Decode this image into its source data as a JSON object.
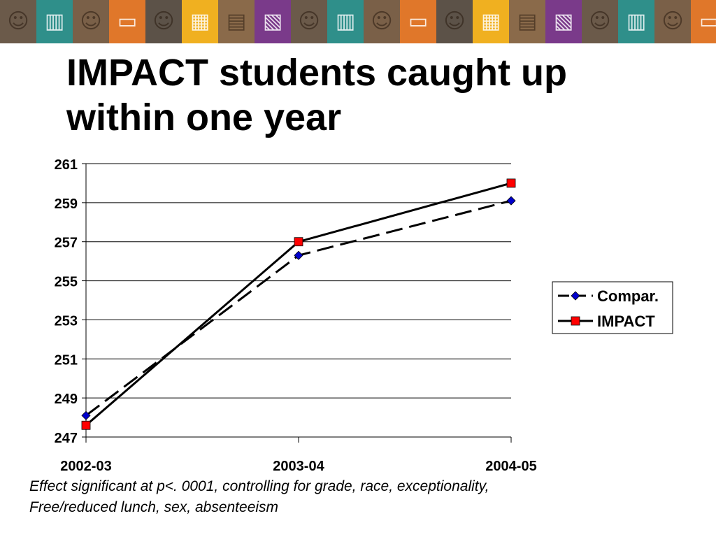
{
  "banner": {
    "tiles": [
      {
        "icon": "student-photo-icon",
        "color": "#6b5a4a",
        "glyph": "☺"
      },
      {
        "icon": "books-icon",
        "color": "#2f8f8a",
        "glyph": "▥"
      },
      {
        "icon": "student-reading-photo-icon",
        "color": "#7a6048",
        "glyph": "☺"
      },
      {
        "icon": "laptop-icon",
        "color": "#e0772a",
        "glyph": "▭"
      },
      {
        "icon": "student-computer-photo-icon",
        "color": "#5c5248",
        "glyph": "☺"
      },
      {
        "icon": "library-icon",
        "color": "#f0b020",
        "glyph": "▦"
      },
      {
        "icon": "library-shelves-photo-icon",
        "color": "#8a6a4a",
        "glyph": "▤"
      },
      {
        "icon": "textbooks-icon",
        "color": "#7a3a8a",
        "glyph": "▧"
      },
      {
        "icon": "student-photo-icon",
        "color": "#6b5a4a",
        "glyph": "☺"
      },
      {
        "icon": "books-icon",
        "color": "#2f8f8a",
        "glyph": "▥"
      },
      {
        "icon": "student-reading-photo-icon",
        "color": "#7a6048",
        "glyph": "☺"
      },
      {
        "icon": "laptop-icon",
        "color": "#e0772a",
        "glyph": "▭"
      },
      {
        "icon": "student-computer-photo-icon",
        "color": "#5c5248",
        "glyph": "☺"
      },
      {
        "icon": "library-icon",
        "color": "#f0b020",
        "glyph": "▦"
      },
      {
        "icon": "library-shelves-photo-icon",
        "color": "#8a6a4a",
        "glyph": "▤"
      },
      {
        "icon": "textbooks-icon",
        "color": "#7a3a8a",
        "glyph": "▧"
      },
      {
        "icon": "student-photo-icon",
        "color": "#6b5a4a",
        "glyph": "☺"
      },
      {
        "icon": "books-icon",
        "color": "#2f8f8a",
        "glyph": "▥"
      },
      {
        "icon": "student-reading-photo-icon",
        "color": "#7a6048",
        "glyph": "☺"
      },
      {
        "icon": "laptop-icon",
        "color": "#e0772a",
        "glyph": "▭"
      }
    ]
  },
  "slide": {
    "title_line1": "IMPACT students caught up",
    "title_line2": "within one year",
    "footnote_line1": "Effect significant at p<. 0001, controlling for grade, race, exceptionality,",
    "footnote_line2": "Free/reduced lunch, sex, absenteeism"
  },
  "chart_data": {
    "type": "line",
    "title": "",
    "xlabel": "",
    "ylabel": "",
    "categories": [
      "2002-03",
      "2003-04",
      "2004-05"
    ],
    "ylim": [
      247,
      261
    ],
    "yticks": [
      247,
      249,
      251,
      253,
      255,
      257,
      259,
      261
    ],
    "grid": true,
    "legend_position": "right",
    "series": [
      {
        "name": "Compar.",
        "values": [
          248.1,
          256.3,
          259.1
        ],
        "color": "#0000cc",
        "marker": "diamond",
        "line_style": "dashed"
      },
      {
        "name": "IMPACT",
        "values": [
          247.6,
          257.0,
          260.0
        ],
        "color": "#ff0000",
        "marker": "square",
        "line_style": "solid"
      }
    ]
  }
}
